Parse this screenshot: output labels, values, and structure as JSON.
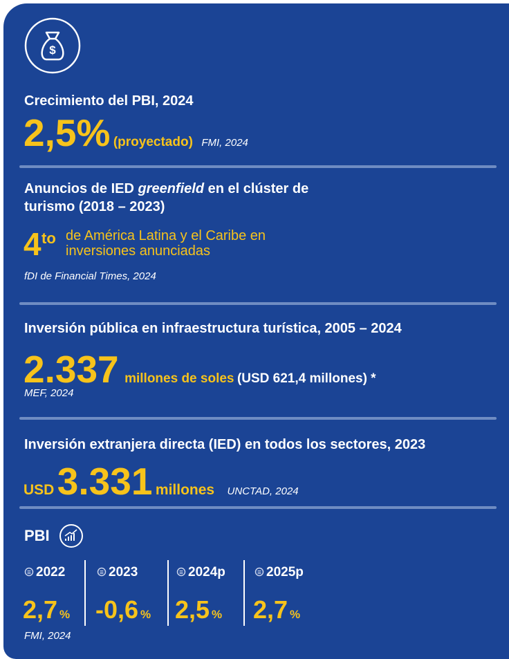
{
  "sections": [
    {
      "title": "Crecimiento del PBI, 2024",
      "value": "2,5%",
      "note": "(proyectado)",
      "source": "FMI, 2024"
    },
    {
      "title_parts": [
        "Anuncios de IED ",
        "greenfield",
        " en el clúster de"
      ],
      "title_line2": "turismo (2018 – 2023)",
      "rank": "4",
      "rank_suffix": "to",
      "note_lines": [
        "de América Latina y el Caribe en",
        "inversiones anunciadas"
      ],
      "source": "fDI de Financial Times, 2024"
    },
    {
      "title": "Inversión pública en infraestructura turística, 2005 – 2024",
      "value": "2.337",
      "unit": "millones de soles",
      "note": "(USD 621,4 millones) *",
      "source": "MEF, 2024"
    },
    {
      "title": "Inversión extranjera directa (IED) en todos los sectores, 2023",
      "prefix": "USD",
      "value": "3.331",
      "unit": "millones",
      "source": "UNCTAD, 2024"
    }
  ],
  "pbi": {
    "title": "PBI",
    "columns": [
      {
        "year": "2022",
        "value": "2,7",
        "unit": "%"
      },
      {
        "year": "2023",
        "value": "-0,6",
        "unit": "%"
      },
      {
        "year": "2024p",
        "value": "2,5",
        "unit": "%"
      },
      {
        "year": "2025p",
        "value": "2,7",
        "unit": "%"
      }
    ],
    "source": "FMI, 2024"
  }
}
